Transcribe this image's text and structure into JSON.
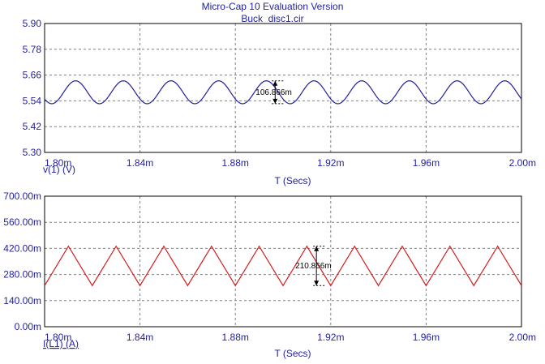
{
  "header": {
    "title": "Micro-Cap 10 Evaluation Version",
    "subtitle": "Buck_disc1.cir"
  },
  "colors": {
    "axis_text": "#1f1fa0",
    "voltage_trace": "#1f1fa0",
    "current_trace": "#d41a1a",
    "grid": "#808080",
    "frame": "#000000"
  },
  "chart_data": [
    {
      "type": "line",
      "series": [
        {
          "name": "v(1) (V)",
          "color": "#1f1fa0",
          "waveform": "sine",
          "period": 2e-05,
          "phase_peak_at": 0.001813,
          "mean": 5.58,
          "amplitude": 0.0533
        }
      ],
      "xlabel": "T (Secs)",
      "ylabel": "v(1) (V)",
      "xlim": [
        0.0018,
        0.002
      ],
      "ylim": [
        5.3,
        5.9
      ],
      "x_ticks": [
        "1.80m",
        "1.84m",
        "1.88m",
        "1.92m",
        "1.96m",
        "2.00m"
      ],
      "y_ticks": [
        "5.90",
        "5.78",
        "5.66",
        "5.54",
        "5.42",
        "5.30"
      ],
      "grid": true,
      "annotation": {
        "text": "106.866m",
        "x": 0.0018967,
        "y_top": 5.633,
        "y_bottom": 5.527
      }
    },
    {
      "type": "line",
      "series": [
        {
          "name": "I(L1) (A)",
          "color": "#d41a1a",
          "waveform": "triangle",
          "period": 2e-05,
          "first_peak_at": 0.00181,
          "first_valley_at": 0.00182,
          "min": 0.2205,
          "max": 0.4315
        }
      ],
      "xlabel": "T (Secs)",
      "ylabel": "I(L1) (A)",
      "xlim": [
        0.0018,
        0.002
      ],
      "ylim": [
        0.0,
        0.7
      ],
      "x_ticks": [
        "1.80m",
        "1.84m",
        "1.88m",
        "1.92m",
        "1.96m",
        "2.00m"
      ],
      "y_ticks": [
        "700.00m",
        "560.00m",
        "420.00m",
        "280.00m",
        "140.00m",
        "0.00m"
      ],
      "grid": true,
      "annotation": {
        "text": "210.866m",
        "x": 0.001914,
        "y_top": 0.4315,
        "y_bottom": 0.2205
      }
    }
  ]
}
